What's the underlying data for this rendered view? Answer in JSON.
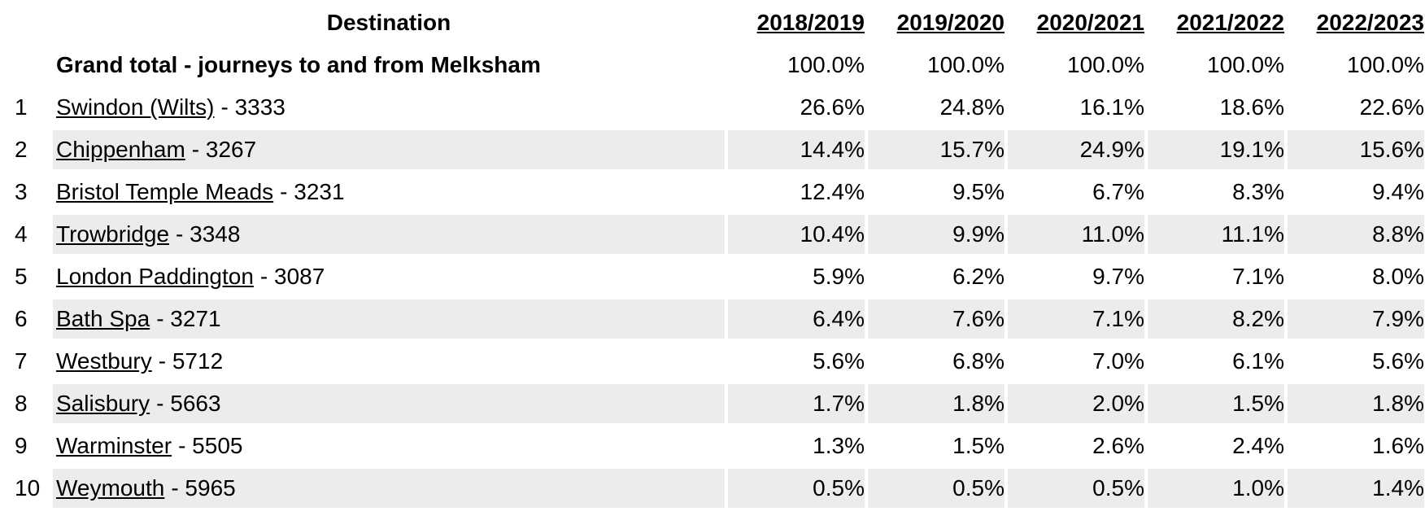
{
  "table": {
    "header": {
      "destination": "Destination",
      "years": [
        "2018/2019",
        "2019/2020",
        "2020/2021",
        "2021/2022",
        "2022/2023"
      ]
    },
    "grand_total": {
      "label": "Grand total - journeys to and from Melksham",
      "values": [
        "100.0%",
        "100.0%",
        "100.0%",
        "100.0%",
        "100.0%"
      ]
    },
    "rows": [
      {
        "rank": 1,
        "name": "Swindon (Wilts)",
        "code": "- 3333",
        "values": [
          "26.6%",
          "24.8%",
          "16.1%",
          "18.6%",
          "22.6%"
        ]
      },
      {
        "rank": 2,
        "name": "Chippenham",
        "code": "- 3267",
        "values": [
          "14.4%",
          "15.7%",
          "24.9%",
          "19.1%",
          "15.6%"
        ]
      },
      {
        "rank": 3,
        "name": "Bristol Temple Meads",
        "code": "- 3231",
        "values": [
          "12.4%",
          "9.5%",
          "6.7%",
          "8.3%",
          "9.4%"
        ]
      },
      {
        "rank": 4,
        "name": "Trowbridge",
        "code": "- 3348",
        "values": [
          "10.4%",
          "9.9%",
          "11.0%",
          "11.1%",
          "8.8%"
        ]
      },
      {
        "rank": 5,
        "name": "London Paddington",
        "code": "- 3087",
        "values": [
          "5.9%",
          "6.2%",
          "9.7%",
          "7.1%",
          "8.0%"
        ]
      },
      {
        "rank": 6,
        "name": "Bath Spa",
        "code": "- 3271",
        "values": [
          "6.4%",
          "7.6%",
          "7.1%",
          "8.2%",
          "7.9%"
        ]
      },
      {
        "rank": 7,
        "name": "Westbury",
        "code": "- 5712",
        "values": [
          "5.6%",
          "6.8%",
          "7.0%",
          "6.1%",
          "5.6%"
        ]
      },
      {
        "rank": 8,
        "name": "Salisbury",
        "code": "- 5663",
        "values": [
          "1.7%",
          "1.8%",
          "2.0%",
          "1.5%",
          "1.8%"
        ]
      },
      {
        "rank": 9,
        "name": "Warminster",
        "code": "- 5505",
        "values": [
          "1.3%",
          "1.5%",
          "2.6%",
          "2.4%",
          "1.6%"
        ]
      },
      {
        "rank": 10,
        "name": "Weymouth",
        "code": "- 5965",
        "values": [
          "0.5%",
          "0.5%",
          "0.5%",
          "1.0%",
          "1.4%"
        ]
      }
    ]
  }
}
